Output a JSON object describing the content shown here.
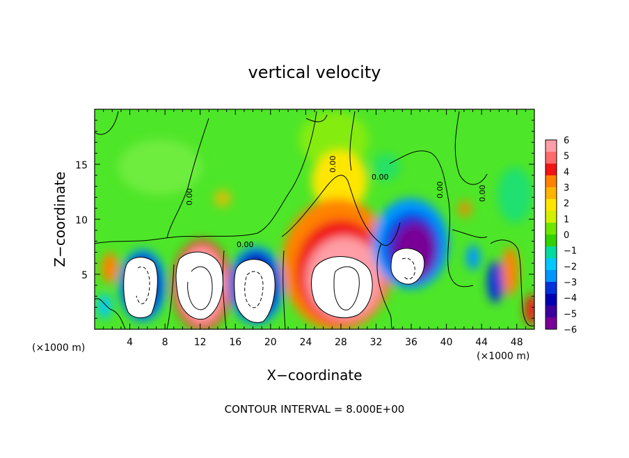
{
  "chart_data": {
    "type": "heatmap",
    "title": "vertical velocity",
    "xlabel": "X−coordinate",
    "ylabel": "Z−coordinate",
    "x_multiplier_left": "(×1000 m)",
    "x_multiplier_right": "(×1000 m)",
    "xlim": [
      0,
      50
    ],
    "ylim": [
      0,
      20
    ],
    "x_ticks": [
      "4",
      "8",
      "12",
      "16",
      "20",
      "24",
      "28",
      "32",
      "36",
      "40",
      "44",
      "48"
    ],
    "y_ticks": [
      "5",
      "10",
      "15"
    ],
    "footer": "CONTOUR INTERVAL = 8.000E+00",
    "contour_label": "0.00",
    "colorbar": {
      "min": -6,
      "max": 6,
      "labels": [
        "6",
        "5",
        "4",
        "3",
        "2",
        "1",
        "0",
        "−1",
        "−2",
        "−3",
        "−4",
        "−5",
        "−6"
      ],
      "colors": [
        "#ff9ea6",
        "#ff6b6b",
        "#f01414",
        "#ff8200",
        "#ffb400",
        "#ffe600",
        "#d2f000",
        "#6ee600",
        "#32d200",
        "#00dca0",
        "#00c8ff",
        "#0096ff",
        "#0032dc",
        "#0000b4",
        "#3c00a0",
        "#780096"
      ]
    },
    "features": [
      {
        "kind": "updraft",
        "x": 28,
        "z": 4.8,
        "peak": ">6"
      },
      {
        "kind": "updraft",
        "x": 12.5,
        "z": 4.5,
        "peak": ">6"
      },
      {
        "kind": "updraft",
        "x": 46.5,
        "z": 5,
        "peak": "4"
      },
      {
        "kind": "updraft",
        "x": 1.5,
        "z": 5.5,
        "peak": "4"
      },
      {
        "kind": "downdraft",
        "x": 5.5,
        "z": 4.5,
        "peak": "<-6"
      },
      {
        "kind": "downdraft",
        "x": 18.5,
        "z": 4.5,
        "peak": "<-6"
      },
      {
        "kind": "downdraft",
        "x": 36,
        "z": 6.5,
        "peak": "<-6"
      },
      {
        "kind": "downdraft",
        "x": 43.5,
        "z": 4,
        "peak": "-4"
      }
    ]
  }
}
